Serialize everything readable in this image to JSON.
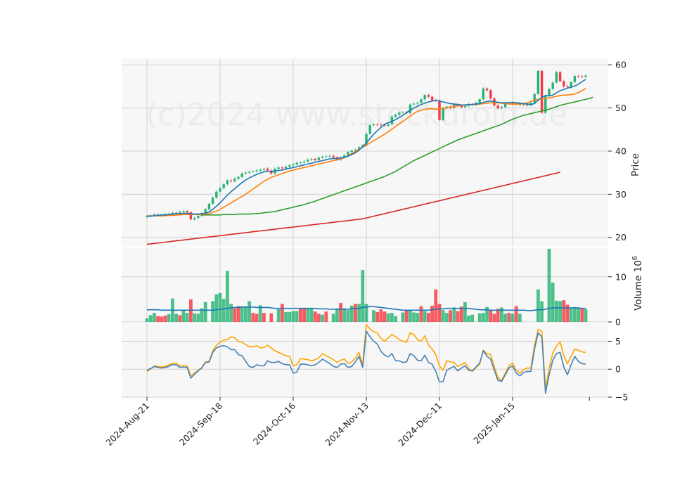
{
  "watermark": "(c)2024 www.stockdroid.de",
  "chart_data": {
    "type": "candlestick",
    "colors": {
      "up": "#26b373",
      "down": "#f6373f",
      "sma_short": "#1f77b4",
      "sma_mid": "#ff7f0e",
      "sma_long": "#2ca02c",
      "sma_200": "#d62728",
      "volume_avg": "#1f77b4",
      "osc_1": "#4682b4",
      "osc_2": "#ffa500",
      "panel_bg": "#f7f7f7",
      "grid": "#d0d0d0"
    },
    "x_ticks": [
      "2024-Aug-21",
      "2024-Sep-18",
      "2024-Oct-16",
      "2024-Nov-13",
      "2024-Dec-11",
      "2025-Jan-15"
    ],
    "x_tick_index": [
      0,
      20,
      40,
      60,
      80,
      100
    ],
    "num_days": 121,
    "price_panel": {
      "ylabel": "Price",
      "ylim": [
        18,
        61.5
      ],
      "yticks": [
        20,
        30,
        40,
        50,
        60
      ],
      "close": [
        24.9,
        25.1,
        25.3,
        25.0,
        25.2,
        25.4,
        25.5,
        25.7,
        25.6,
        25.9,
        26.1,
        25.8,
        24.2,
        24.5,
        25.0,
        25.6,
        26.5,
        27.8,
        29.2,
        30.6,
        31.4,
        32.3,
        33.2,
        33.0,
        33.6,
        34.0,
        34.8,
        35.0,
        35.2,
        35.3,
        35.5,
        35.7,
        35.9,
        35.5,
        34.8,
        35.9,
        36.2,
        36.0,
        36.4,
        36.7,
        36.9,
        37.3,
        37.4,
        37.6,
        38.0,
        38.2,
        37.9,
        38.5,
        38.7,
        38.8,
        38.9,
        38.6,
        38.0,
        38.5,
        39.0,
        39.8,
        40.1,
        40.3,
        40.9,
        41.3,
        44.0,
        46.0,
        46.2,
        46.1,
        46.0,
        45.9,
        46.2,
        48.0,
        48.4,
        48.9,
        49.0,
        48.8,
        50.8,
        51.0,
        51.2,
        52.0,
        53.0,
        52.6,
        51.8,
        51.7,
        47.2,
        50.0,
        50.3,
        50.0,
        50.8,
        50.5,
        50.2,
        50.5,
        50.9,
        50.7,
        51.2,
        52.0,
        54.5,
        54.1,
        52.2,
        50.6,
        49.9,
        50.2,
        51.1,
        51.2,
        50.9,
        51.1,
        50.7,
        50.8,
        50.6,
        51.2,
        53.2,
        58.6,
        48.9,
        52.8,
        54.4,
        55.9,
        58.3,
        56.2,
        55.0,
        54.8,
        56.0,
        57.4,
        57.3,
        57.2,
        57.5
      ],
      "sma_short": [
        24.9,
        24.9,
        25.0,
        25.1,
        25.2,
        25.2,
        25.3,
        25.4,
        25.5,
        25.5,
        25.6,
        25.6,
        25.5,
        25.4,
        25.4,
        25.5,
        25.6,
        25.9,
        26.5,
        27.2,
        28.0,
        28.9,
        29.8,
        30.6,
        31.3,
        32.0,
        32.7,
        33.3,
        33.8,
        34.2,
        34.6,
        34.9,
        35.2,
        35.3,
        35.3,
        35.4,
        35.5,
        35.6,
        35.8,
        36.0,
        36.2,
        36.4,
        36.6,
        36.8,
        37.0,
        37.2,
        37.4,
        37.6,
        37.8,
        38.0,
        38.2,
        38.3,
        38.3,
        38.4,
        38.6,
        38.8,
        39.2,
        39.6,
        40.2,
        41.0,
        41.9,
        42.9,
        43.9,
        44.7,
        45.5,
        46.2,
        46.6,
        46.9,
        47.3,
        47.8,
        48.3,
        48.9,
        49.5,
        50.0,
        50.4,
        50.8,
        51.1,
        51.4,
        51.6,
        51.8,
        51.6,
        51.4,
        51.2,
        51.0,
        50.9,
        50.8,
        50.7,
        50.7,
        50.8,
        50.8,
        50.9,
        51.0,
        51.3,
        51.5,
        51.6,
        51.5,
        51.3,
        51.2,
        51.2,
        51.2,
        51.3,
        51.2,
        51.1,
        51.0,
        50.9,
        50.8,
        51.0,
        51.8,
        52.4,
        52.9,
        52.8,
        53.0,
        53.5,
        54.0,
        54.3,
        54.6,
        54.8,
        55.1,
        55.5,
        56.1,
        56.6
      ],
      "sma_mid": [
        25.0,
        25.0,
        25.0,
        25.0,
        25.0,
        25.0,
        25.1,
        25.1,
        25.2,
        25.2,
        25.3,
        25.3,
        25.3,
        25.3,
        25.3,
        25.3,
        25.4,
        25.5,
        25.8,
        26.1,
        26.5,
        27.0,
        27.5,
        28.0,
        28.5,
        29.0,
        29.5,
        30.0,
        30.6,
        31.2,
        31.8,
        32.4,
        33.0,
        33.5,
        33.9,
        34.2,
        34.5,
        34.8,
        35.1,
        35.4,
        35.6,
        35.8,
        36.0,
        36.2,
        36.4,
        36.6,
        36.8,
        37.0,
        37.2,
        37.4,
        37.6,
        37.8,
        38.0,
        38.2,
        38.5,
        38.9,
        39.4,
        39.9,
        40.4,
        40.9,
        41.4,
        41.9,
        42.4,
        42.9,
        43.4,
        43.9,
        44.5,
        45.1,
        45.7,
        46.3,
        46.9,
        47.5,
        48.1,
        48.7,
        49.2,
        49.5,
        49.7,
        49.8,
        49.8,
        49.7,
        49.8,
        49.9,
        50.0,
        50.2,
        50.3,
        50.5,
        50.6,
        50.7,
        50.7,
        50.8,
        50.8,
        50.9,
        51.0,
        51.1,
        51.2,
        51.2,
        51.2,
        51.1,
        51.0,
        50.9,
        50.9,
        50.9,
        50.9,
        51.0,
        51.2,
        51.5,
        51.8,
        52.0,
        52.1,
        52.2,
        52.3,
        52.5,
        52.7,
        52.9,
        53.0,
        53.0,
        53.1,
        53.2,
        53.6,
        54.0,
        54.5
      ],
      "sma_long": [
        25.2,
        25.2,
        25.2,
        25.2,
        25.2,
        25.2,
        25.3,
        25.3,
        25.3,
        25.3,
        25.4,
        25.4,
        25.4,
        25.4,
        25.5,
        25.5,
        25.6,
        25.7,
        25.8,
        25.9,
        26.0,
        26.2,
        26.4,
        26.6,
        26.8,
        27.0,
        27.2,
        27.4,
        27.6,
        27.9,
        28.1,
        28.4,
        28.7,
        29.0,
        29.3,
        29.6,
        29.9,
        30.2,
        30.5,
        30.8,
        31.1,
        31.4,
        31.7,
        32.0,
        32.3,
        32.6,
        32.9,
        33.2,
        33.5,
        33.8,
        34.1,
        34.5,
        34.9,
        35.3,
        35.8,
        36.3,
        36.8,
        37.3,
        37.8,
        38.2,
        38.6,
        39.0,
        39.4,
        39.8,
        40.2,
        40.6,
        41.0,
        41.4,
        41.8,
        42.2,
        42.6,
        42.9,
        43.2,
        43.5,
        43.8,
        44.1,
        44.4,
        44.7,
        45.0,
        45.3,
        45.6,
        45.9,
        46.2,
        46.6,
        47.0,
        47.4,
        47.7,
        48.0,
        48.3,
        48.5,
        48.7,
        48.9,
        49.1,
        49.3,
        49.5,
        49.7,
        50.0,
        50.3,
        50.6,
        50.8,
        51.0,
        51.2,
        51.4,
        51.6,
        51.8,
        52.0,
        52.2,
        52.5
      ],
      "sma_long_start": 15,
      "sma_200": [
        18.4,
        18.5,
        18.6,
        18.7,
        18.8,
        18.9,
        19.0,
        19.1,
        19.2,
        19.3,
        19.4,
        19.5,
        19.6,
        19.7,
        19.8,
        19.9,
        20.0,
        20.1,
        20.2,
        20.3,
        20.4,
        20.5,
        20.6,
        20.7,
        20.8,
        20.9,
        21.0,
        21.1,
        21.2,
        21.3,
        21.4,
        21.5,
        21.6,
        21.7,
        21.8,
        21.9,
        22.0,
        22.1,
        22.2,
        22.3,
        22.4,
        22.5,
        22.6,
        22.7,
        22.8,
        22.9,
        23.0,
        23.1,
        23.2,
        23.3,
        23.4,
        23.5,
        23.6,
        23.7,
        23.8,
        23.9,
        24.0,
        24.1,
        24.2,
        24.3,
        24.5,
        24.7,
        24.9,
        25.1,
        25.3,
        25.5,
        25.7,
        25.9,
        26.1,
        26.3,
        26.5,
        26.7,
        26.9,
        27.1,
        27.3,
        27.5,
        27.7,
        27.9,
        28.1,
        28.3,
        28.5,
        28.7,
        28.9,
        29.1,
        29.3,
        29.5,
        29.7,
        29.9,
        30.1,
        30.3,
        30.5,
        30.7,
        30.9,
        31.1,
        31.3,
        31.5,
        31.7,
        31.9,
        32.1,
        32.3,
        32.5,
        32.7,
        32.9,
        33.1,
        33.3,
        33.5,
        33.7,
        33.9,
        34.1,
        34.3,
        34.5,
        34.7,
        34.9,
        35.1
      ]
    },
    "volume_panel": {
      "ylabel": "Volume  10",
      "ylabel_exp": "6",
      "ylim": [
        0,
        16.5
      ],
      "yticks": [
        0,
        10
      ],
      "values": [
        0.8,
        1.5,
        2.0,
        1.3,
        1.2,
        1.4,
        1.7,
        5.2,
        1.8,
        1.5,
        2.6,
        2.0,
        5.0,
        1.9,
        1.8,
        3.0,
        4.4,
        0,
        4.6,
        6.1,
        6.4,
        5.1,
        11.3,
        4.0,
        3.0,
        3.5,
        3.4,
        3.4,
        4.6,
        2.0,
        1.8,
        3.7,
        2.0,
        0,
        1.9,
        0,
        2.8,
        4.0,
        2.2,
        2.2,
        2.4,
        2.4,
        3.0,
        2.9,
        3.0,
        3.0,
        2.3,
        1.8,
        1.6,
        2.3,
        0,
        1.8,
        3.0,
        4.2,
        3.0,
        2.6,
        3.6,
        4.0,
        4.0,
        11.5,
        4.0,
        0,
        2.6,
        2.2,
        2.8,
        2.3,
        1.9,
        2.0,
        1.3,
        0,
        2.1,
        2.6,
        2.6,
        2.1,
        2.0,
        3.5,
        2.4,
        2.0,
        3.6,
        7.2,
        4.0,
        2.6,
        2.0,
        2.6,
        3.2,
        2.4,
        3.4,
        4.4,
        1.4,
        1.6,
        0,
        1.9,
        2.0,
        3.3,
        2.5,
        1.8,
        2.9,
        3.2,
        1.8,
        2.0,
        1.8,
        3.5,
        1.8,
        0,
        0,
        0,
        0,
        7.2,
        4.6,
        0,
        16.2,
        8.7,
        4.7,
        4.6,
        4.8,
        3.8,
        3.0,
        3.3,
        3.2,
        3.0,
        2.8
      ],
      "up": [
        1,
        1,
        1,
        0,
        0,
        0,
        1,
        1,
        1,
        0,
        1,
        1,
        0,
        1,
        1,
        1,
        1,
        1,
        1,
        1,
        1,
        1,
        1,
        1,
        0,
        0,
        1,
        1,
        1,
        0,
        0,
        1,
        0,
        1,
        0,
        1,
        1,
        0,
        1,
        1,
        1,
        1,
        0,
        0,
        1,
        1,
        0,
        0,
        1,
        0,
        1,
        1,
        1,
        0,
        1,
        1,
        1,
        0,
        1,
        1,
        1,
        1,
        1,
        0,
        0,
        0,
        1,
        1,
        1,
        1,
        1,
        0,
        1,
        1,
        1,
        0,
        1,
        0,
        0,
        0,
        0,
        1,
        1,
        0,
        1,
        0,
        0,
        1,
        1,
        1,
        1,
        1,
        1,
        1,
        0,
        0,
        0,
        1,
        1,
        0,
        1,
        0,
        1,
        1,
        0,
        1,
        1,
        1,
        1,
        0,
        1,
        1,
        1,
        1,
        0,
        0,
        1,
        1,
        1,
        0,
        1
      ],
      "avg": [
        2.7,
        2.7,
        2.7,
        2.7,
        2.6,
        2.6,
        2.6,
        2.6,
        2.6,
        2.6,
        2.6,
        2.6,
        2.6,
        2.6,
        2.6,
        2.6,
        2.6,
        2.6,
        2.6,
        2.7,
        2.8,
        2.9,
        3.0,
        3.1,
        3.2,
        3.2,
        3.3,
        3.3,
        3.3,
        3.3,
        3.2,
        3.2,
        3.2,
        3.2,
        3.1,
        3.0,
        3.0,
        3.0,
        3.0,
        3.0,
        3.0,
        3.0,
        3.0,
        3.0,
        3.0,
        3.0,
        3.0,
        2.9,
        2.9,
        2.9,
        2.8,
        2.8,
        2.8,
        2.8,
        2.8,
        2.8,
        2.9,
        3.0,
        3.0,
        3.2,
        3.3,
        3.4,
        3.4,
        3.3,
        3.2,
        3.1,
        3.0,
        2.9,
        2.8,
        2.7,
        2.6,
        2.6,
        2.6,
        2.6,
        2.6,
        2.6,
        2.6,
        2.6,
        2.7,
        2.8,
        2.9,
        2.9,
        3.0,
        3.0,
        3.0,
        3.0,
        3.0,
        3.0,
        3.0,
        2.9,
        2.8,
        2.7,
        2.7,
        2.7,
        2.6,
        2.6,
        2.6,
        2.6,
        2.6,
        2.6,
        2.6,
        2.6,
        2.6,
        2.6,
        2.5,
        2.5,
        2.6,
        2.7,
        2.7,
        2.8,
        3.0,
        3.1,
        3.1,
        3.1,
        3.1,
        3.1,
        3.1,
        3.1,
        3.1,
        3.0,
        3.0
      ]
    },
    "oscillator_panel": {
      "ylim": [
        -5,
        8.2
      ],
      "yticks": [
        -5,
        0,
        5
      ],
      "line1": [
        -0.2,
        0.1,
        0.5,
        0.3,
        0.2,
        0.3,
        0.5,
        0.8,
        0.8,
        0.3,
        0.4,
        0.3,
        -1.6,
        -0.9,
        -0.3,
        0.2,
        1.2,
        1.3,
        3.0,
        3.8,
        4.1,
        4.2,
        4.0,
        3.5,
        3.5,
        2.6,
        2.4,
        1.4,
        0.5,
        0.3,
        0.8,
        0.6,
        0.6,
        1.5,
        1.2,
        1.2,
        1.4,
        1.0,
        0.8,
        0.8,
        -0.7,
        -0.5,
        0.9,
        0.9,
        0.8,
        0.6,
        0.8,
        1.2,
        1.8,
        1.4,
        1.0,
        0.5,
        0.3,
        0.9,
        1.0,
        0.3,
        0.5,
        1.3,
        2.3,
        0.3,
        6.8,
        5.8,
        5.0,
        4.5,
        3.2,
        2.5,
        2.2,
        2.8,
        1.5,
        1.5,
        1.2,
        1.3,
        2.8,
        2.4,
        1.6,
        1.5,
        2.5,
        1.2,
        0.9,
        -0.4,
        -2.3,
        -2.2,
        -0.2,
        0.2,
        0.5,
        -0.3,
        0.2,
        0.6,
        -0.2,
        -0.3,
        0.4,
        1.1,
        3.3,
        2.3,
        1.8,
        -0.2,
        -2.0,
        -2.2,
        -1.0,
        0.2,
        0.6,
        -0.7,
        -1.2,
        -0.6,
        -0.4,
        -0.4,
        3.6,
        6.5,
        5.8,
        -4.3,
        -1.0,
        1.6,
        2.8,
        3.0,
        0.4,
        -1.0,
        0.8,
        2.3,
        1.4,
        1.0,
        0.9
      ],
      "line2": [
        -0.4,
        0.0,
        0.6,
        0.5,
        0.4,
        0.5,
        0.8,
        1.0,
        1.1,
        0.6,
        0.6,
        0.6,
        -1.2,
        -0.7,
        -0.2,
        0.3,
        1.3,
        1.4,
        3.3,
        4.3,
        4.8,
        5.2,
        5.3,
        5.8,
        5.6,
        5.0,
        4.8,
        4.4,
        4.0,
        4.0,
        4.2,
        3.8,
        3.9,
        4.3,
        3.8,
        3.3,
        3.0,
        2.7,
        2.4,
        2.3,
        0.6,
        0.8,
        1.9,
        1.8,
        1.7,
        1.5,
        1.7,
        2.0,
        2.8,
        2.4,
        2.1,
        1.7,
        1.2,
        1.6,
        1.8,
        1.0,
        1.3,
        2.0,
        3.0,
        0.8,
        8.0,
        7.2,
        6.7,
        6.5,
        5.5,
        5.0,
        5.6,
        6.2,
        5.8,
        5.3,
        5.0,
        4.8,
        6.5,
        6.2,
        5.3,
        5.0,
        6.0,
        4.3,
        3.6,
        2.6,
        0.6,
        -0.2,
        1.5,
        1.3,
        1.2,
        0.5,
        0.8,
        1.2,
        0.1,
        -0.4,
        0.3,
        0.9,
        3.4,
        2.8,
        2.6,
        0.5,
        -1.5,
        -2.0,
        -0.7,
        0.6,
        1.1,
        -0.2,
        -0.7,
        -0.1,
        0.2,
        0.2,
        4.3,
        7.1,
        6.8,
        -3.5,
        0.2,
        2.9,
        4.1,
        4.9,
        2.4,
        1.0,
        2.3,
        3.6,
        3.4,
        3.1,
        3.0
      ]
    }
  }
}
